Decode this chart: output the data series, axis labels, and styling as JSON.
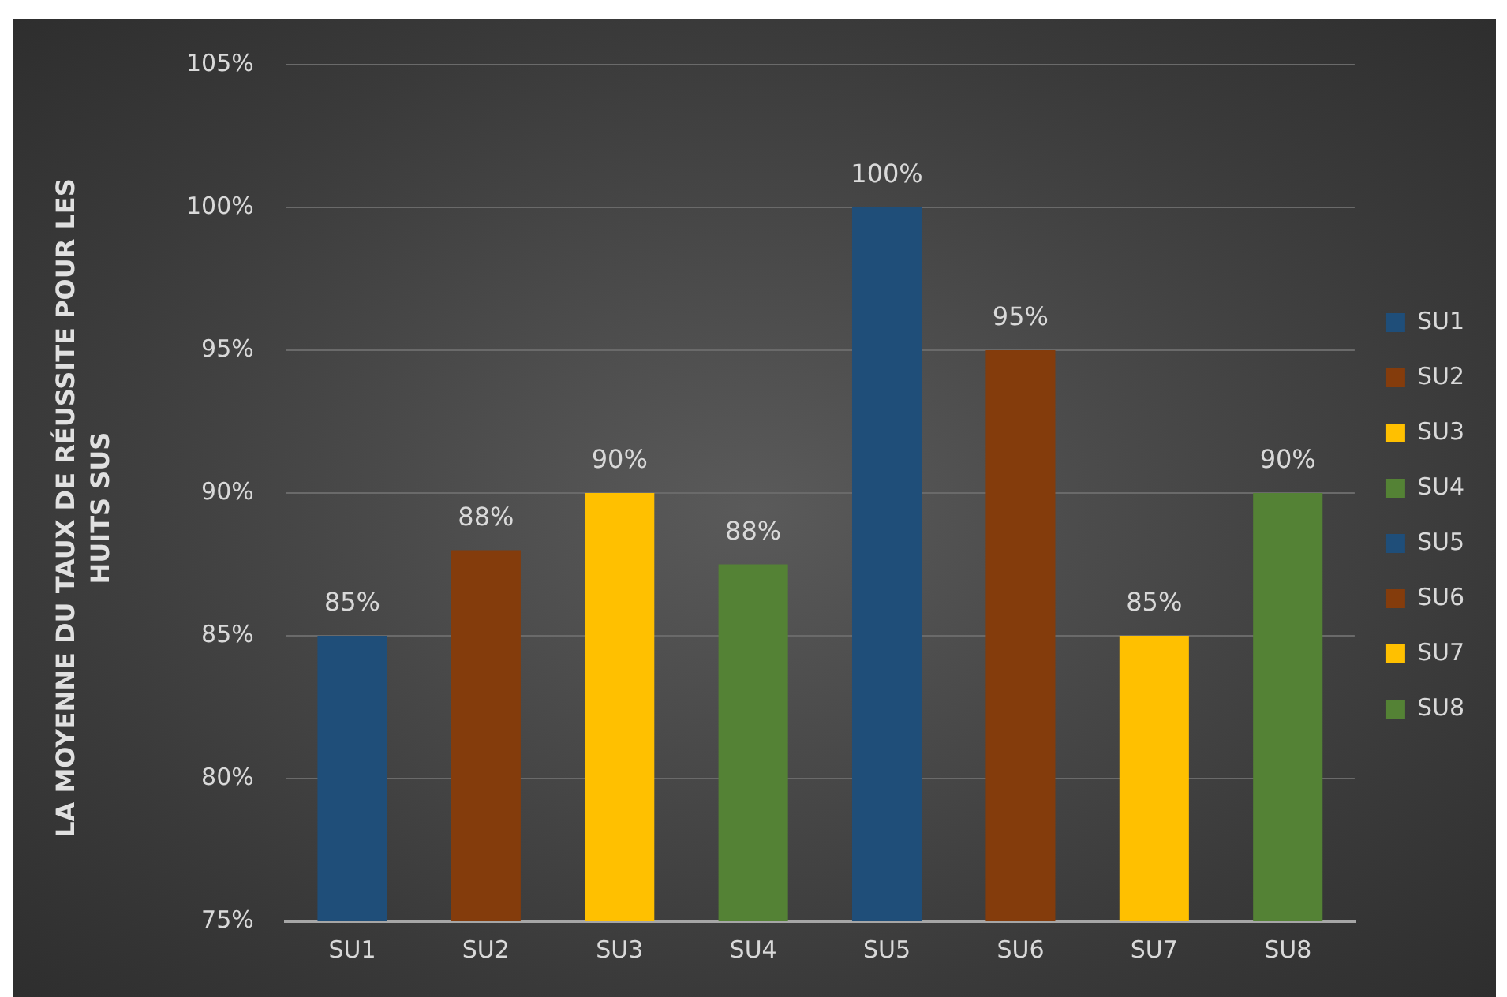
{
  "chart_data": {
    "type": "bar",
    "ylabel": "LA MOYENNE DU TAUX DE RÉUSSITE POUR LES HUITS SUS",
    "categories": [
      "SU1",
      "SU2",
      "SU3",
      "SU4",
      "SU5",
      "SU6",
      "SU7",
      "SU8"
    ],
    "series": [
      {
        "name": "SU1",
        "color": "#1f4e79",
        "values": [
          85,
          null,
          null,
          null,
          null,
          null,
          null,
          null
        ],
        "value_labels": [
          "85%",
          null,
          null,
          null,
          null,
          null,
          null,
          null
        ]
      },
      {
        "name": "SU2",
        "color": "#843c0c",
        "values": [
          null,
          88,
          null,
          null,
          null,
          null,
          null,
          null
        ],
        "value_labels": [
          null,
          "88%",
          null,
          null,
          null,
          null,
          null,
          null
        ]
      },
      {
        "name": "SU3",
        "color": "#ffc000",
        "values": [
          null,
          null,
          90,
          null,
          null,
          null,
          null,
          null
        ],
        "value_labels": [
          null,
          null,
          "90%",
          null,
          null,
          null,
          null,
          null
        ]
      },
      {
        "name": "SU4",
        "color": "#548235",
        "values": [
          null,
          null,
          null,
          87.5,
          null,
          null,
          null,
          null
        ],
        "value_labels": [
          null,
          null,
          null,
          "88%",
          null,
          null,
          null,
          null
        ]
      },
      {
        "name": "SU5",
        "color": "#1f4e79",
        "values": [
          null,
          null,
          null,
          null,
          100,
          null,
          null,
          null
        ],
        "value_labels": [
          null,
          null,
          null,
          null,
          "100%",
          null,
          null,
          null
        ]
      },
      {
        "name": "SU6",
        "color": "#843c0c",
        "values": [
          null,
          null,
          null,
          null,
          null,
          95,
          null,
          null
        ],
        "value_labels": [
          null,
          null,
          null,
          null,
          null,
          "95%",
          null,
          null
        ]
      },
      {
        "name": "SU7",
        "color": "#ffc000",
        "values": [
          null,
          null,
          null,
          null,
          null,
          null,
          85,
          null
        ],
        "value_labels": [
          null,
          null,
          null,
          null,
          null,
          null,
          "85%",
          null
        ]
      },
      {
        "name": "SU8",
        "color": "#548235",
        "values": [
          null,
          null,
          null,
          null,
          null,
          null,
          null,
          90
        ],
        "value_labels": [
          null,
          null,
          null,
          null,
          null,
          null,
          null,
          "90%"
        ]
      }
    ],
    "ylim": [
      75,
      105
    ],
    "yticks": [
      {
        "value": 75,
        "label": "75%"
      },
      {
        "value": 80,
        "label": "80%"
      },
      {
        "value": 85,
        "label": "85%"
      },
      {
        "value": 90,
        "label": "90%"
      },
      {
        "value": 95,
        "label": "95%"
      },
      {
        "value": 100,
        "label": "100%"
      },
      {
        "value": 105,
        "label": "105%"
      }
    ],
    "grid": "y",
    "legend": "right"
  }
}
